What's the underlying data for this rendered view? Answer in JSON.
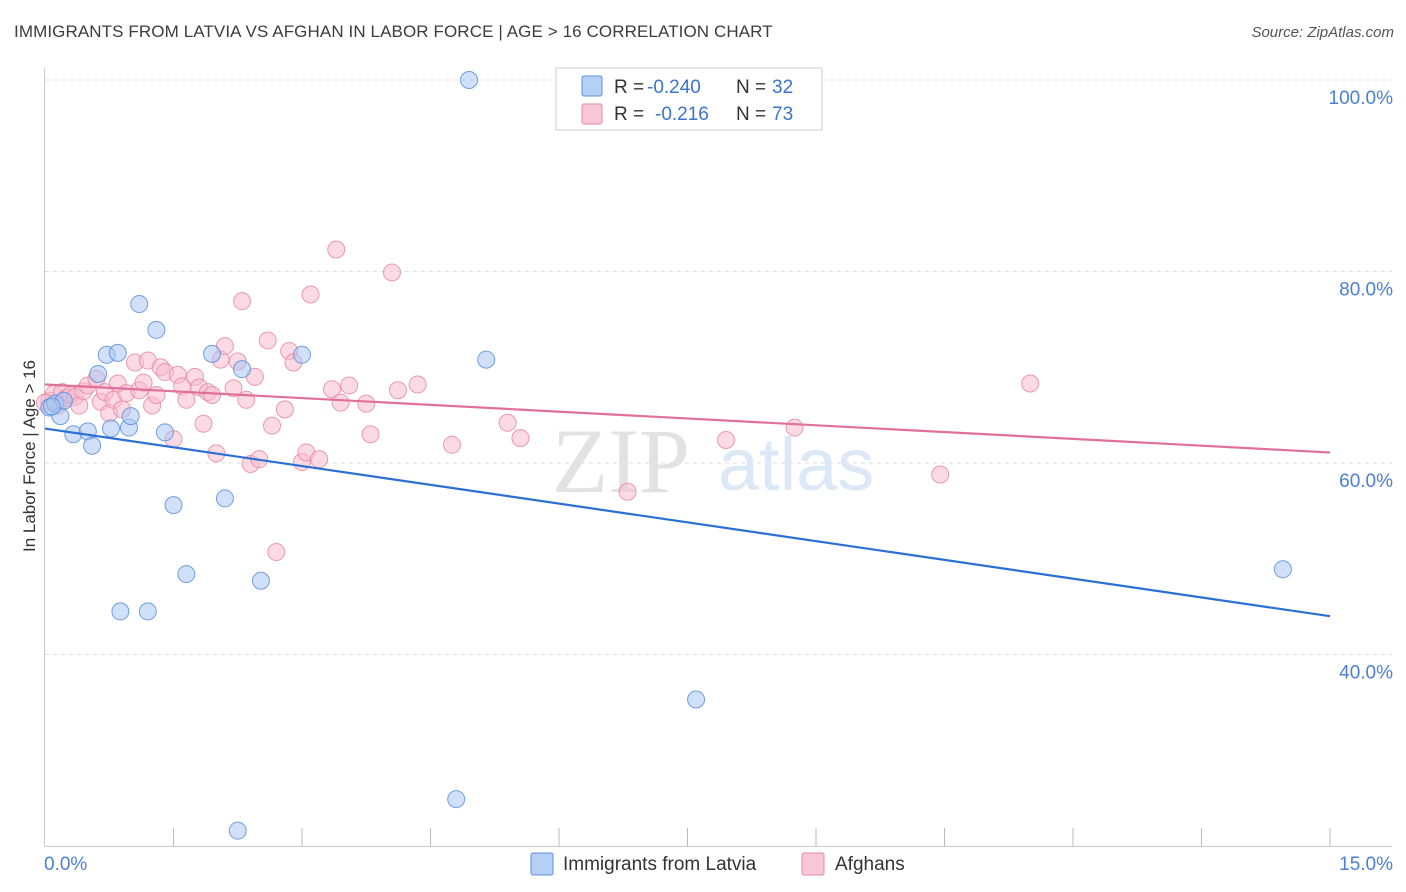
{
  "header": {
    "title": "IMMIGRANTS FROM LATVIA VS AFGHAN IN LABOR FORCE | AGE > 16 CORRELATION CHART",
    "source": "Source: ZipAtlas.com"
  },
  "watermark": {
    "zip": "ZIP",
    "atlas": "atlas"
  },
  "colors": {
    "latvia_fill": "#a9c6f2",
    "latvia_stroke": "#5b8fdc",
    "latvia_line": "#2a6fd6",
    "afghan_fill": "#f7bccd",
    "afghan_stroke": "#e889a6",
    "afghan_line": "#e0709a",
    "grid": "#dddddd",
    "tick_label": "#4a7fd4"
  },
  "legend": {
    "rows": [
      {
        "r_label": "R =",
        "r_value": "-0.240",
        "n_label": "N =",
        "n_value": "32"
      },
      {
        "r_label": "R =",
        "r_value": "-0.216",
        "n_label": "N =",
        "n_value": "73"
      }
    ]
  },
  "chart_data": {
    "type": "scatter",
    "title": "IMMIGRANTS FROM LATVIA VS AFGHAN IN LABOR FORCE | AGE > 16 CORRELATION CHART",
    "xlabel": "",
    "ylabel": "In Labor Force | Age > 16",
    "xlim": [
      0,
      15
    ],
    "ylim": [
      20,
      104
    ],
    "x_tick_labels": [
      {
        "value": 0,
        "label": "0.0%"
      },
      {
        "value": 15,
        "label": "15.0%"
      }
    ],
    "y_tick_labels": [
      {
        "value": 100,
        "label": "100.0%"
      },
      {
        "value": 80,
        "label": "80.0%"
      },
      {
        "value": 60,
        "label": "60.0%"
      },
      {
        "value": 40,
        "label": "40.0%"
      }
    ],
    "y_gridlines": [
      100,
      80,
      60,
      40
    ],
    "x_minor_ticks": [
      1.5,
      3.0,
      4.5,
      6.0,
      7.5,
      9.0,
      10.5,
      12.0,
      13.5,
      15.0
    ],
    "series": [
      {
        "name": "Immigrants from Latvia",
        "R": -0.24,
        "N": 32,
        "trend": {
          "x": [
            0,
            15
          ],
          "y": [
            63.6,
            44.0
          ]
        },
        "points": [
          [
            0.05,
            65.8
          ],
          [
            0.12,
            66.2
          ],
          [
            0.18,
            64.9
          ],
          [
            0.22,
            66.5
          ],
          [
            0.33,
            63.0
          ],
          [
            0.5,
            63.3
          ],
          [
            0.55,
            61.8
          ],
          [
            0.62,
            69.3
          ],
          [
            0.72,
            71.3
          ],
          [
            0.77,
            63.6
          ],
          [
            0.85,
            71.5
          ],
          [
            0.88,
            44.5
          ],
          [
            0.98,
            63.7
          ],
          [
            1.0,
            64.9
          ],
          [
            1.1,
            76.6
          ],
          [
            1.2,
            44.5
          ],
          [
            1.3,
            73.9
          ],
          [
            1.4,
            63.2
          ],
          [
            1.5,
            55.6
          ],
          [
            1.65,
            48.4
          ],
          [
            1.95,
            71.4
          ],
          [
            2.1,
            56.3
          ],
          [
            2.3,
            69.8
          ],
          [
            2.52,
            47.7
          ],
          [
            3.0,
            71.3
          ],
          [
            4.95,
            100.0
          ],
          [
            5.15,
            70.8
          ],
          [
            7.6,
            35.3
          ],
          [
            4.8,
            24.9
          ],
          [
            2.25,
            21.6
          ],
          [
            14.45,
            48.9
          ],
          [
            0.08,
            65.9
          ]
        ]
      },
      {
        "name": "Afghans",
        "R": -0.216,
        "N": 73,
        "trend": {
          "x": [
            0,
            15
          ],
          "y": [
            68.2,
            61.1
          ]
        },
        "points": [
          [
            0.05,
            66.5
          ],
          [
            0.1,
            67.2
          ],
          [
            0.15,
            66.0
          ],
          [
            0.2,
            67.4
          ],
          [
            0.25,
            66.8
          ],
          [
            0.3,
            67.1
          ],
          [
            0.35,
            66.9
          ],
          [
            0.4,
            66.0
          ],
          [
            0.45,
            67.5
          ],
          [
            0.5,
            68.1
          ],
          [
            0.6,
            68.8
          ],
          [
            0.65,
            66.4
          ],
          [
            0.7,
            67.4
          ],
          [
            0.75,
            65.2
          ],
          [
            0.8,
            66.6
          ],
          [
            0.85,
            68.3
          ],
          [
            0.9,
            65.6
          ],
          [
            0.95,
            67.3
          ],
          [
            1.05,
            70.5
          ],
          [
            1.1,
            67.6
          ],
          [
            1.15,
            68.4
          ],
          [
            1.2,
            70.7
          ],
          [
            1.25,
            66.0
          ],
          [
            1.3,
            67.1
          ],
          [
            1.35,
            70.0
          ],
          [
            1.4,
            69.5
          ],
          [
            1.5,
            62.5
          ],
          [
            1.55,
            69.2
          ],
          [
            1.6,
            68.0
          ],
          [
            1.65,
            66.6
          ],
          [
            1.75,
            69.0
          ],
          [
            1.8,
            67.9
          ],
          [
            1.85,
            64.1
          ],
          [
            1.9,
            67.4
          ],
          [
            1.95,
            67.1
          ],
          [
            2.0,
            61.0
          ],
          [
            2.05,
            70.8
          ],
          [
            2.1,
            72.2
          ],
          [
            2.2,
            67.8
          ],
          [
            2.25,
            70.6
          ],
          [
            2.3,
            76.9
          ],
          [
            2.35,
            66.6
          ],
          [
            2.4,
            59.9
          ],
          [
            2.45,
            69.0
          ],
          [
            2.5,
            60.4
          ],
          [
            2.6,
            72.8
          ],
          [
            2.65,
            63.9
          ],
          [
            2.7,
            50.7
          ],
          [
            2.8,
            65.6
          ],
          [
            2.85,
            71.7
          ],
          [
            2.9,
            70.5
          ],
          [
            3.0,
            60.1
          ],
          [
            3.05,
            61.1
          ],
          [
            3.1,
            77.6
          ],
          [
            3.2,
            60.4
          ],
          [
            3.35,
            67.7
          ],
          [
            3.4,
            82.3
          ],
          [
            3.45,
            66.3
          ],
          [
            3.55,
            68.1
          ],
          [
            3.75,
            66.2
          ],
          [
            3.8,
            63.0
          ],
          [
            4.05,
            79.9
          ],
          [
            4.12,
            67.6
          ],
          [
            4.35,
            68.2
          ],
          [
            4.75,
            61.9
          ],
          [
            5.4,
            64.2
          ],
          [
            5.55,
            62.6
          ],
          [
            6.8,
            57.0
          ],
          [
            7.95,
            62.4
          ],
          [
            8.75,
            63.7
          ],
          [
            10.45,
            58.8
          ],
          [
            11.5,
            68.3
          ],
          [
            0.0,
            66.3
          ]
        ]
      }
    ]
  },
  "bottom_legend": {
    "items": [
      {
        "label": "Immigrants from Latvia"
      },
      {
        "label": "Afghans"
      }
    ]
  }
}
